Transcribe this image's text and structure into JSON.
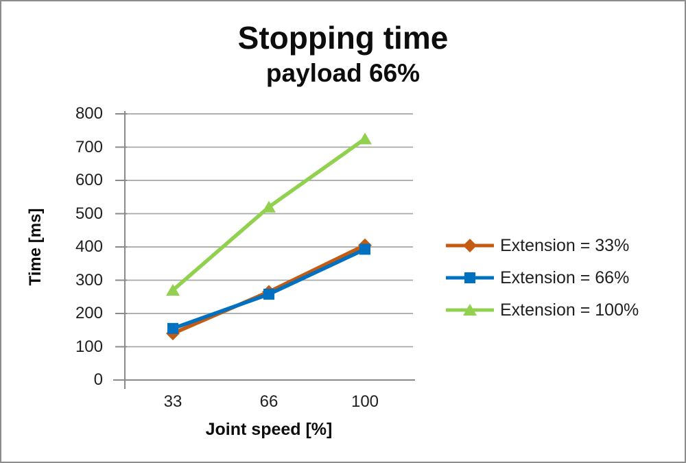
{
  "window": {
    "background": "#ffffff",
    "border_color": "#8c8c8c"
  },
  "chart_data": {
    "type": "line",
    "title": "Stopping time",
    "subtitle": "payload 66%",
    "xlabel": "Joint speed [%]",
    "ylabel": "Time [ms]",
    "categories": [
      "33",
      "66",
      "100"
    ],
    "series": [
      {
        "name": "Extension = 33%",
        "values": [
          140,
          265,
          405
        ],
        "color": "#c55a11",
        "marker": "diamond"
      },
      {
        "name": "Extension = 66%",
        "values": [
          155,
          258,
          393
        ],
        "color": "#0070c0",
        "marker": "square"
      },
      {
        "name": "Extension = 100%",
        "values": [
          270,
          520,
          725
        ],
        "color": "#92d050",
        "marker": "triangle"
      }
    ],
    "ylim": [
      0,
      800
    ],
    "y_ticks": [
      "0",
      "100",
      "200",
      "300",
      "400",
      "500",
      "600",
      "700",
      "800"
    ],
    "grid": true,
    "legend_position": "right",
    "colors": {
      "gridline": "#a6a6a6",
      "axis": "#8a8a8a",
      "tick_text": "#1f1f1f",
      "title_text": "#0d0d0d"
    }
  }
}
